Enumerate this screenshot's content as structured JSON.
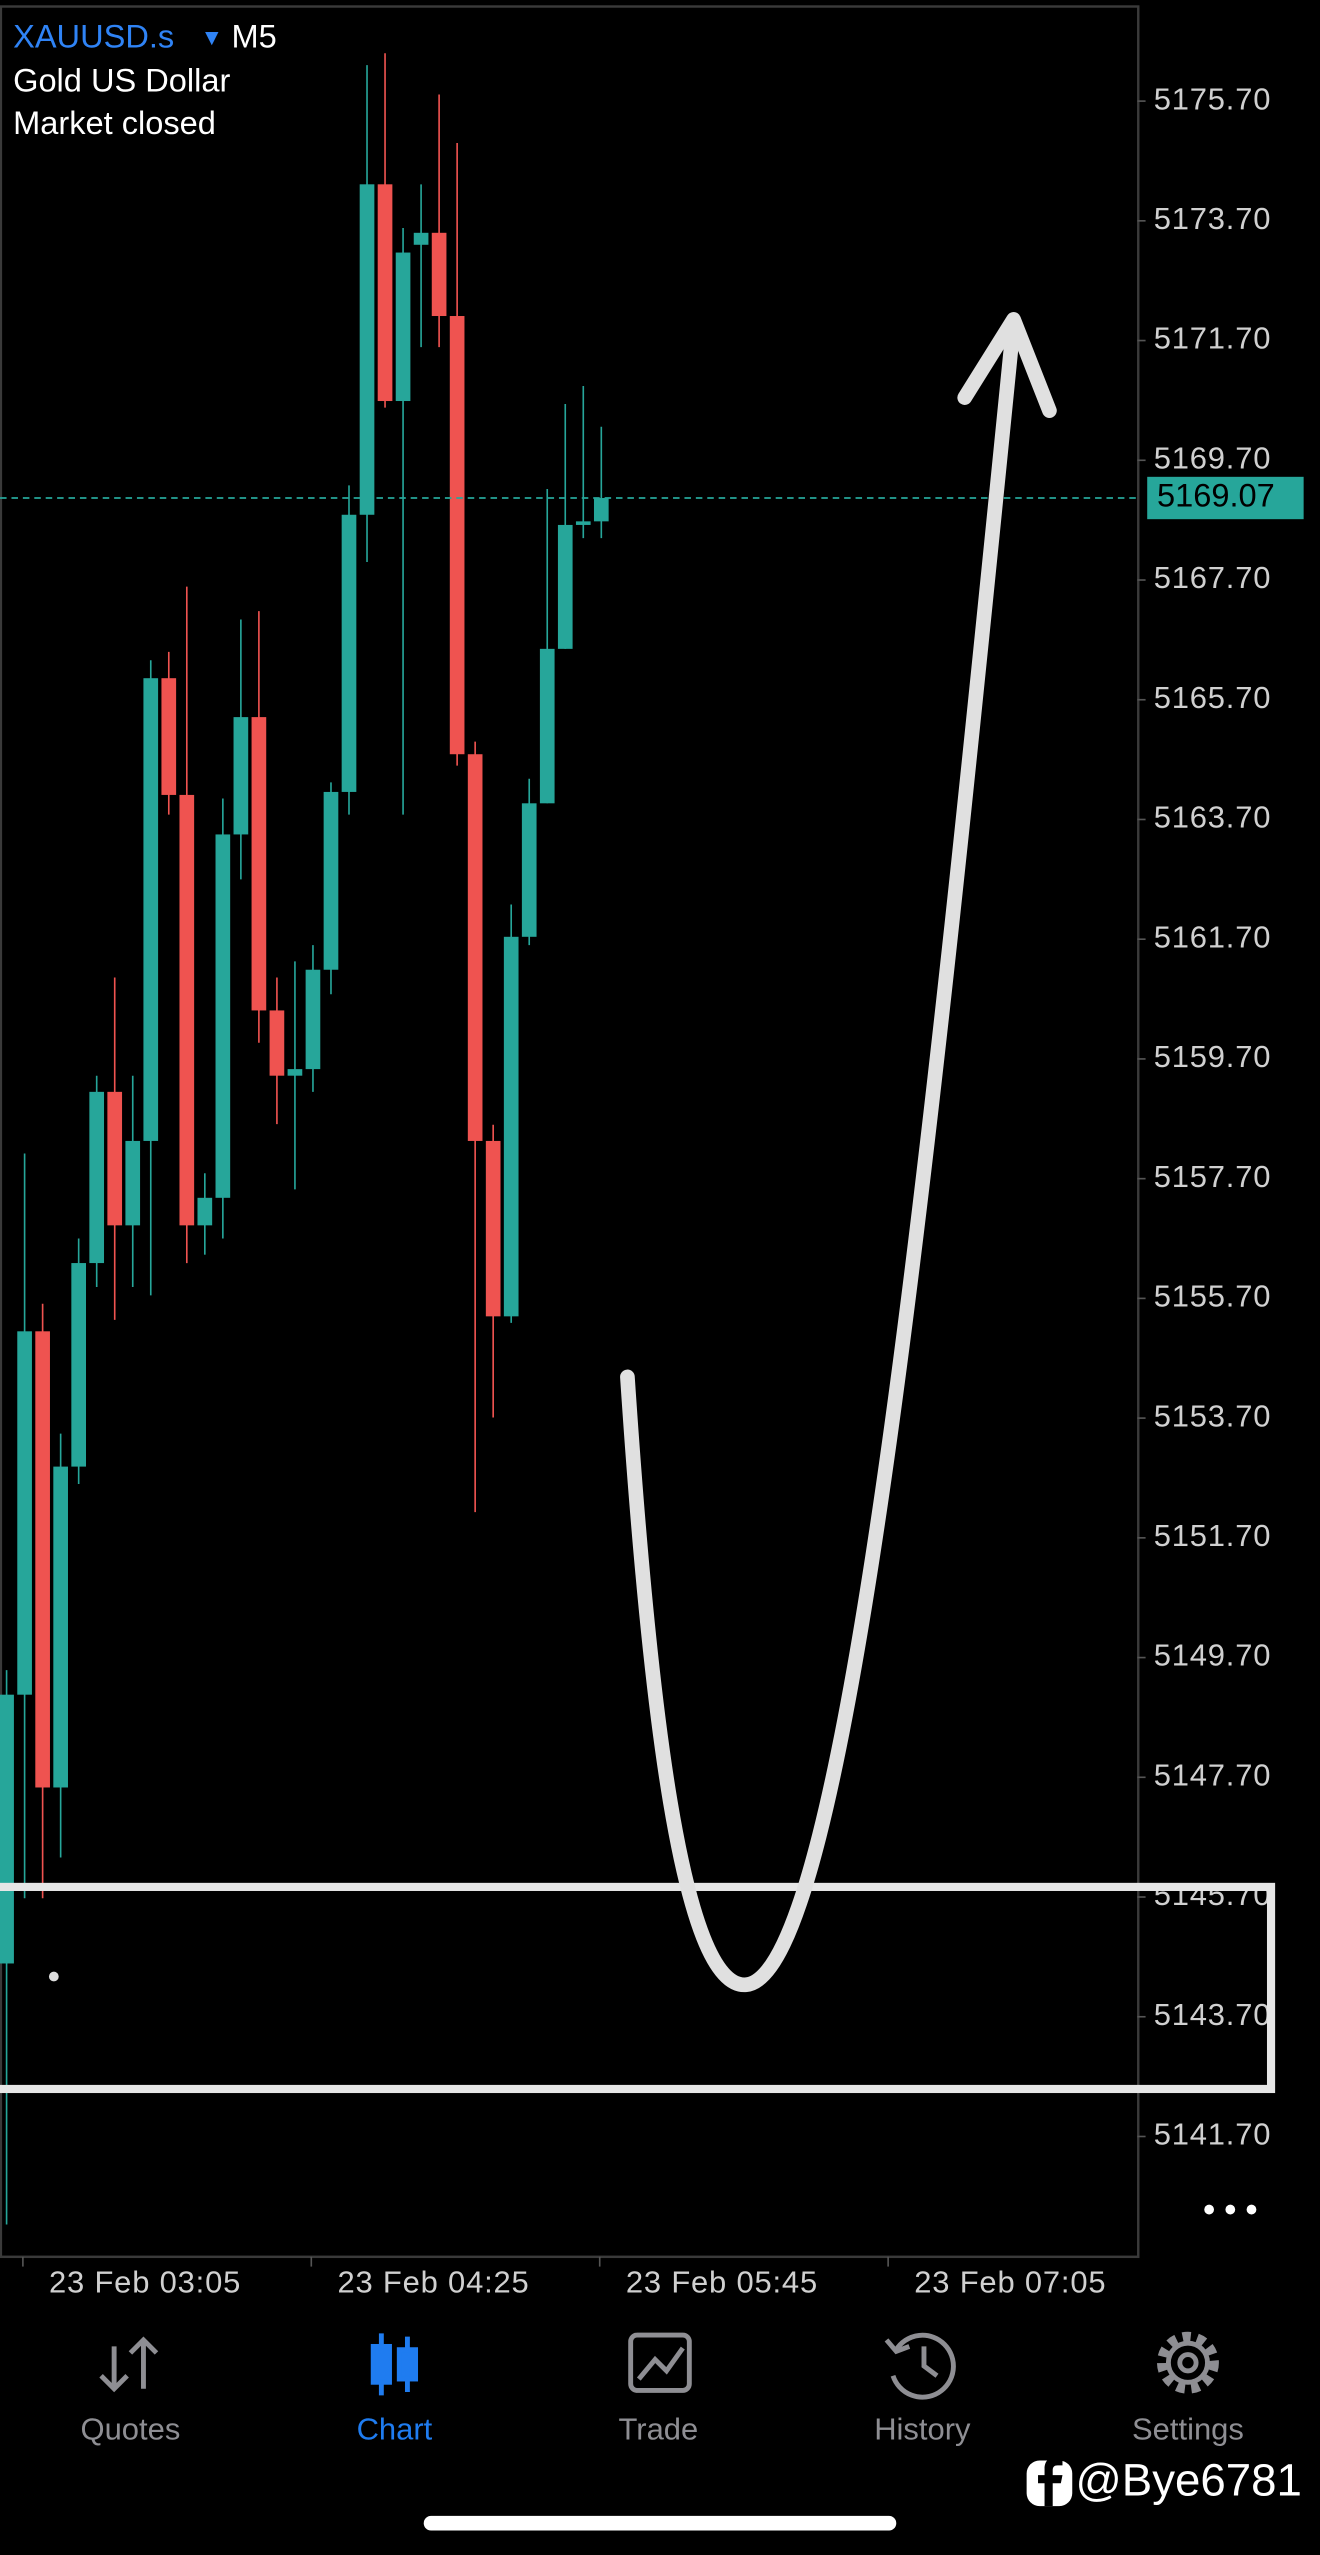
{
  "header": {
    "symbol": "XAUUSD.s",
    "timeframe": "M5",
    "description": "Gold US Dollar",
    "status": "Market closed"
  },
  "chart_data": {
    "type": "candlestick",
    "up_color": "#26a69a",
    "down_color": "#ef5350",
    "ylim": [
      5139.69,
      5177.28
    ],
    "yticks": [
      {
        "value": 5175.7,
        "label": "5175.70"
      },
      {
        "value": 5173.7,
        "label": "5173.70"
      },
      {
        "value": 5171.7,
        "label": "5171.70"
      },
      {
        "value": 5169.7,
        "label": "5169.70"
      },
      {
        "value": 5167.7,
        "label": "5167.70"
      },
      {
        "value": 5165.7,
        "label": "5165.70"
      },
      {
        "value": 5163.7,
        "label": "5163.70"
      },
      {
        "value": 5161.7,
        "label": "5161.70"
      },
      {
        "value": 5159.7,
        "label": "5159.70"
      },
      {
        "value": 5157.7,
        "label": "5157.70"
      },
      {
        "value": 5155.7,
        "label": "5155.70"
      },
      {
        "value": 5153.7,
        "label": "5153.70"
      },
      {
        "value": 5151.7,
        "label": "5151.70"
      },
      {
        "value": 5149.7,
        "label": "5149.70"
      },
      {
        "value": 5147.7,
        "label": "5147.70"
      },
      {
        "value": 5145.7,
        "label": "5145.70"
      },
      {
        "value": 5143.7,
        "label": "5143.70"
      },
      {
        "value": 5141.7,
        "label": "5141.70"
      }
    ],
    "xtick_labels": [
      "23 Feb 03:05",
      "23 Feb 04:25",
      "23 Feb 05:45",
      "23 Feb 07:05"
    ],
    "last_price": 5169.07,
    "candles": [
      {
        "open": 5144.59,
        "high": 5149.49,
        "low": 5140.23,
        "close": 5149.08
      },
      {
        "open": 5149.08,
        "high": 5158.12,
        "low": 5145.68,
        "close": 5155.15
      },
      {
        "open": 5155.15,
        "high": 5155.61,
        "low": 5145.68,
        "close": 5147.53
      },
      {
        "open": 5147.53,
        "high": 5153.44,
        "low": 5146.36,
        "close": 5152.89
      },
      {
        "open": 5152.89,
        "high": 5156.7,
        "low": 5152.6,
        "close": 5156.29
      },
      {
        "open": 5156.29,
        "high": 5159.42,
        "low": 5155.89,
        "close": 5159.15
      },
      {
        "open": 5159.15,
        "high": 5161.06,
        "low": 5155.34,
        "close": 5156.92
      },
      {
        "open": 5156.92,
        "high": 5159.42,
        "low": 5155.89,
        "close": 5158.33
      },
      {
        "open": 5158.33,
        "high": 5166.36,
        "low": 5155.75,
        "close": 5166.06
      },
      {
        "open": 5166.06,
        "high": 5166.5,
        "low": 5163.78,
        "close": 5164.11
      },
      {
        "open": 5164.11,
        "high": 5167.59,
        "low": 5156.29,
        "close": 5156.92
      },
      {
        "open": 5156.92,
        "high": 5157.79,
        "low": 5156.43,
        "close": 5157.38
      },
      {
        "open": 5157.38,
        "high": 5164.05,
        "low": 5156.7,
        "close": 5163.45
      },
      {
        "open": 5163.45,
        "high": 5167.04,
        "low": 5162.7,
        "close": 5165.41
      },
      {
        "open": 5165.41,
        "high": 5167.18,
        "low": 5159.97,
        "close": 5160.51
      },
      {
        "open": 5160.51,
        "high": 5161.06,
        "low": 5158.61,
        "close": 5159.42
      },
      {
        "open": 5159.42,
        "high": 5161.33,
        "low": 5157.52,
        "close": 5159.53
      },
      {
        "open": 5159.53,
        "high": 5161.6,
        "low": 5159.15,
        "close": 5161.19
      },
      {
        "open": 5161.19,
        "high": 5164.32,
        "low": 5160.78,
        "close": 5164.16
      },
      {
        "open": 5164.16,
        "high": 5169.28,
        "low": 5163.78,
        "close": 5168.79
      },
      {
        "open": 5168.79,
        "high": 5176.3,
        "low": 5168.0,
        "close": 5174.31
      },
      {
        "open": 5174.31,
        "high": 5176.5,
        "low": 5170.58,
        "close": 5170.69
      },
      {
        "open": 5170.69,
        "high": 5173.58,
        "low": 5163.78,
        "close": 5173.17
      },
      {
        "open": 5173.3,
        "high": 5174.31,
        "low": 5171.59,
        "close": 5173.5
      },
      {
        "open": 5173.5,
        "high": 5175.81,
        "low": 5171.59,
        "close": 5172.11
      },
      {
        "open": 5172.11,
        "high": 5175.0,
        "low": 5164.6,
        "close": 5164.79
      },
      {
        "open": 5164.79,
        "high": 5165.0,
        "low": 5152.13,
        "close": 5158.33
      },
      {
        "open": 5158.33,
        "high": 5158.6,
        "low": 5153.71,
        "close": 5155.4
      },
      {
        "open": 5155.4,
        "high": 5162.28,
        "low": 5155.29,
        "close": 5161.74
      },
      {
        "open": 5161.74,
        "high": 5164.38,
        "low": 5161.6,
        "close": 5163.97
      },
      {
        "open": 5163.97,
        "high": 5169.22,
        "low": 5163.97,
        "close": 5166.55
      },
      {
        "open": 5166.55,
        "high": 5170.64,
        "low": 5166.55,
        "close": 5168.62
      },
      {
        "open": 5168.62,
        "high": 5170.94,
        "low": 5168.4,
        "close": 5168.68
      },
      {
        "open": 5168.68,
        "high": 5170.26,
        "low": 5168.4,
        "close": 5169.07
      }
    ]
  },
  "nav": {
    "items": [
      "Quotes",
      "Chart",
      "Trade",
      "History",
      "Settings"
    ]
  },
  "watermark": "@Bye6781"
}
